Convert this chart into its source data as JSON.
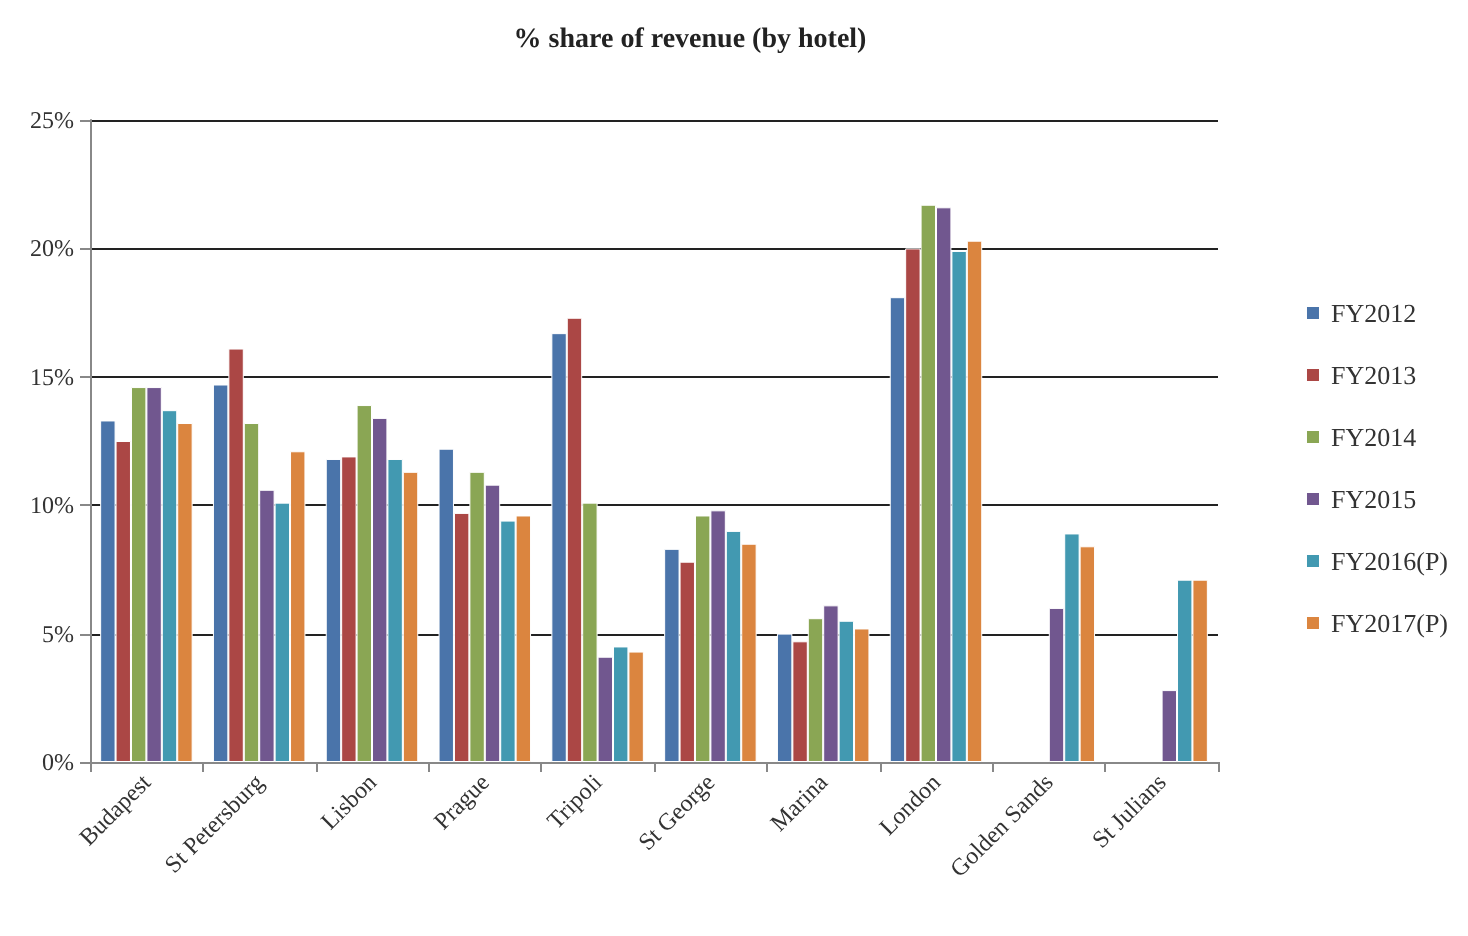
{
  "chart_data": {
    "type": "bar",
    "title": "% share of revenue (by hotel)",
    "categories": [
      "Budapest",
      "St Petersburg",
      "Lisbon",
      "Prague",
      "Tripoli",
      "St George",
      "Marina",
      "London",
      "Golden Sands",
      "St Julians"
    ],
    "series": [
      {
        "name": "FY2012",
        "color": "#4a74aa",
        "values": [
          13.3,
          14.7,
          11.8,
          12.2,
          16.7,
          8.3,
          5.0,
          18.1,
          null,
          null
        ]
      },
      {
        "name": "FY2013",
        "color": "#ab4745",
        "values": [
          12.5,
          16.1,
          11.9,
          9.7,
          17.3,
          7.8,
          4.7,
          20.0,
          null,
          null
        ]
      },
      {
        "name": "FY2014",
        "color": "#8aa654",
        "values": [
          14.6,
          13.2,
          13.9,
          11.3,
          10.1,
          9.6,
          5.6,
          21.7,
          null,
          null
        ]
      },
      {
        "name": "FY2015",
        "color": "#71578f",
        "values": [
          14.6,
          10.6,
          13.4,
          10.8,
          4.1,
          9.8,
          6.1,
          21.6,
          6.0,
          2.8
        ]
      },
      {
        "name": "FY2016(P)",
        "color": "#4299b1",
        "values": [
          13.7,
          10.1,
          11.8,
          9.4,
          4.5,
          9.0,
          5.5,
          19.9,
          8.9,
          7.1
        ]
      },
      {
        "name": "FY2017(P)",
        "color": "#db853f",
        "values": [
          13.2,
          12.1,
          11.3,
          9.6,
          4.3,
          8.5,
          5.2,
          20.3,
          8.4,
          7.1
        ]
      }
    ],
    "ylim": [
      0,
      25
    ],
    "yticks": [
      {
        "value": 0,
        "label": "0%"
      },
      {
        "value": 5,
        "label": "5%"
      },
      {
        "value": 10,
        "label": "10%"
      },
      {
        "value": 15,
        "label": "15%"
      },
      {
        "value": 20,
        "label": "20%"
      },
      {
        "value": 25,
        "label": "25%"
      }
    ],
    "grid": "y",
    "legend": "right"
  }
}
